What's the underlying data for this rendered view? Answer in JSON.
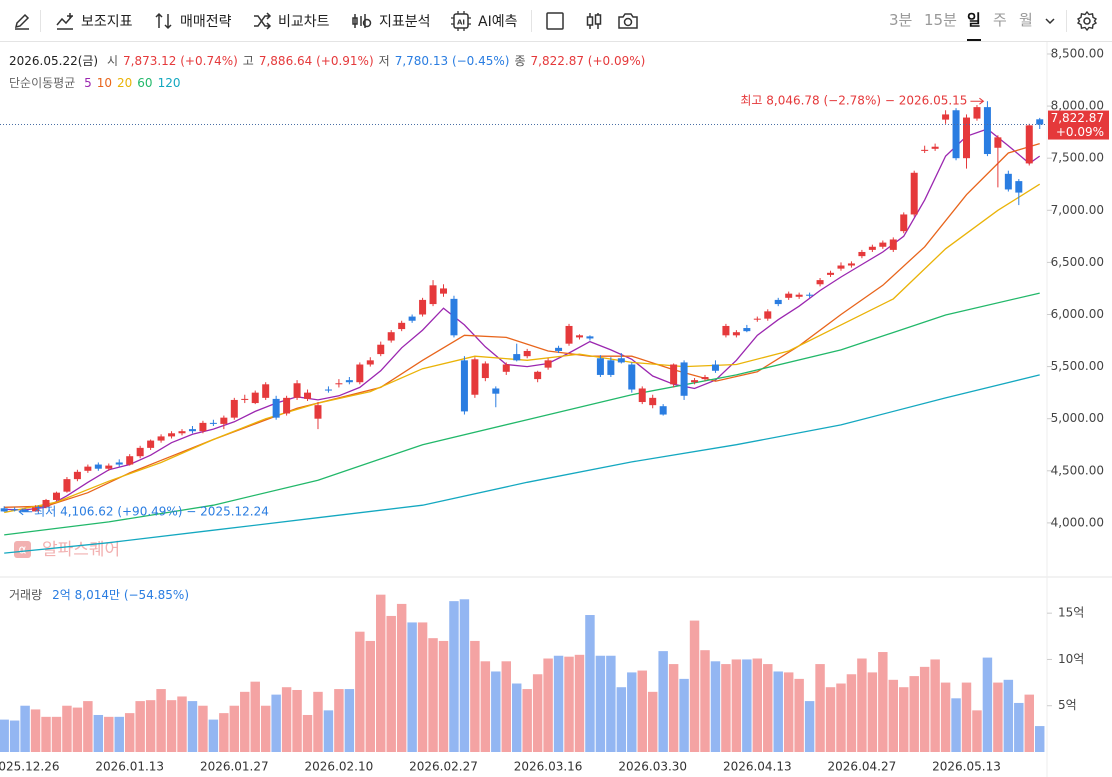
{
  "toolbar": {
    "tools": [
      "보조지표",
      "매매전략",
      "비교차트",
      "지표분석",
      "AI예측"
    ],
    "periods": [
      {
        "label": "3분"
      },
      {
        "label": "15분"
      },
      {
        "label": "일",
        "selected": true
      },
      {
        "label": "주"
      },
      {
        "label": "월"
      }
    ]
  },
  "chart_data": {
    "type": "candlestick",
    "info": {
      "date": "2026.05.22(금)",
      "fields": [
        {
          "label": "시",
          "value": "7,873.12 (+0.74%)",
          "color": "#e5393b"
        },
        {
          "label": "고",
          "value": "7,886.64 (+0.91%)",
          "color": "#e5393b"
        },
        {
          "label": "저",
          "value": "7,780.13 (−0.45%)",
          "color": "#2a7de1"
        },
        {
          "label": "종",
          "value": "7,822.87 (+0.09%)",
          "color": "#e5393b"
        }
      ]
    },
    "ma_title": "단순이동평균",
    "watermark": "알파스퀘어",
    "categories": [
      null,
      null,
      "2025.12.26",
      null,
      null,
      null,
      null,
      null,
      null,
      null,
      null,
      null,
      "2026.01.13",
      null,
      null,
      null,
      null,
      null,
      null,
      null,
      null,
      null,
      "2026.01.27",
      null,
      null,
      null,
      null,
      null,
      null,
      null,
      null,
      null,
      "2026.02.10",
      null,
      null,
      null,
      null,
      null,
      null,
      null,
      null,
      null,
      "2026.02.27",
      null,
      null,
      null,
      null,
      null,
      null,
      null,
      null,
      null,
      "2026.03.16",
      null,
      null,
      null,
      null,
      null,
      null,
      null,
      null,
      null,
      "2026.03.30",
      null,
      null,
      null,
      null,
      null,
      null,
      null,
      null,
      null,
      "2026.04.13",
      null,
      null,
      null,
      null,
      null,
      null,
      null,
      null,
      null,
      "2026.04.27",
      null,
      null,
      null,
      null,
      null,
      null,
      null,
      null,
      null,
      "2026.05.13",
      null,
      null,
      null,
      null,
      null,
      null,
      null
    ],
    "open": [
      4140,
      4130,
      4125,
      4110,
      4150,
      4220,
      4300,
      4420,
      4500,
      4560,
      4520,
      4580,
      4560,
      4640,
      4720,
      4790,
      4830,
      4860,
      4900,
      4880,
      4960,
      4950,
      5010,
      5180,
      5150,
      5200,
      5190,
      5050,
      5200,
      5190,
      5000,
      5280,
      5330,
      5370,
      5350,
      5520,
      5620,
      5750,
      5860,
      5980,
      6000,
      6100,
      6200,
      6150,
      5560,
      5230,
      5390,
      5290,
      5450,
      5620,
      5600,
      5380,
      5490,
      5680,
      5720,
      5780,
      5790,
      5580,
      5560,
      5580,
      5520,
      5160,
      5130,
      5120,
      5330,
      5540,
      5350,
      5380,
      5520,
      5800,
      5800,
      5870,
      5950,
      5960,
      6140,
      6160,
      6170,
      6190,
      6290,
      6380,
      6440,
      6470,
      6560,
      6620,
      6650,
      6620,
      6800,
      6960,
      7570,
      7590,
      7870,
      7960,
      7500,
      7880,
      7990,
      7600,
      7350,
      7280,
      7450,
      7873.12
    ],
    "high": [
      4160,
      4150,
      4140,
      4170,
      4230,
      4300,
      4440,
      4510,
      4560,
      4580,
      4570,
      4610,
      4660,
      4740,
      4800,
      4850,
      4880,
      4900,
      4930,
      4980,
      4990,
      5030,
      5200,
      5230,
      5270,
      5350,
      5220,
      5220,
      5370,
      5280,
      5160,
      5310,
      5380,
      5400,
      5540,
      5590,
      5740,
      5850,
      5940,
      6000,
      6160,
      6330,
      6290,
      6180,
      5600,
      5590,
      5550,
      5310,
      5540,
      5720,
      5670,
      5460,
      5580,
      5700,
      5910,
      5810,
      5800,
      5610,
      5590,
      5630,
      5540,
      5310,
      5230,
      5140,
      5530,
      5560,
      5390,
      5420,
      5560,
      5910,
      5850,
      5900,
      5980,
      6050,
      6160,
      6220,
      6210,
      6210,
      6350,
      6420,
      6500,
      6510,
      6620,
      6670,
      6710,
      6740,
      6980,
      7380,
      7620,
      7640,
      7960,
      7980,
      7920,
      8010,
      8046.78,
      7720,
      7380,
      7300,
      7830,
      7886.64
    ],
    "low": [
      4106.62,
      4110,
      4108,
      4108,
      4140,
      4210,
      4290,
      4400,
      4480,
      4500,
      4500,
      4540,
      4550,
      4620,
      4700,
      4770,
      4810,
      4840,
      4860,
      4860,
      4930,
      4900,
      4990,
      5150,
      5140,
      5180,
      4990,
      5030,
      5180,
      5170,
      4900,
      5250,
      5300,
      5330,
      5330,
      5500,
      5600,
      5730,
      5840,
      5920,
      5980,
      6080,
      6170,
      5780,
      5040,
      5200,
      5360,
      5110,
      5420,
      5550,
      5580,
      5350,
      5470,
      5630,
      5700,
      5760,
      5750,
      5400,
      5400,
      5530,
      5250,
      5140,
      5100,
      5030,
      5300,
      5180,
      5330,
      5360,
      5440,
      5780,
      5780,
      5830,
      5930,
      5940,
      6080,
      6140,
      6150,
      6160,
      6270,
      6360,
      6420,
      6450,
      6540,
      6600,
      6630,
      6600,
      6780,
      6940,
      7550,
      7570,
      7830,
      7480,
      7400,
      7860,
      7520,
      7220,
      7180,
      7050,
      7430,
      7780.13
    ],
    "close": [
      4110,
      4120,
      4110,
      4150,
      4220,
      4290,
      4420,
      4490,
      4540,
      4520,
      4550,
      4560,
      4640,
      4720,
      4790,
      4830,
      4860,
      4880,
      4880,
      4960,
      4950,
      5010,
      5180,
      5190,
      5250,
      5330,
      5010,
      5200,
      5340,
      5250,
      5130,
      5270,
      5340,
      5350,
      5520,
      5560,
      5710,
      5830,
      5920,
      5940,
      6140,
      6280,
      6250,
      5800,
      5070,
      5570,
      5530,
      5240,
      5520,
      5560,
      5650,
      5450,
      5560,
      5650,
      5890,
      5800,
      5770,
      5420,
      5420,
      5540,
      5280,
      5290,
      5200,
      5040,
      5520,
      5220,
      5370,
      5400,
      5460,
      5890,
      5830,
      5840,
      5960,
      6030,
      6100,
      6200,
      6190,
      6180,
      6330,
      6400,
      6470,
      6490,
      6600,
      6650,
      6690,
      6720,
      6960,
      7360,
      7580,
      7610,
      7920,
      7500,
      7890,
      7990,
      7540,
      7700,
      7200,
      7170,
      7815,
      7822.87
    ],
    "up_color": "#e5393b",
    "down_color": "#2a7de1",
    "ylim": [
      3500,
      8615
    ],
    "yticks": [
      {
        "value": 4000,
        "label": "4,000.00"
      },
      {
        "value": 4500,
        "label": "4,500.00"
      },
      {
        "value": 5000,
        "label": "5,000.00"
      },
      {
        "value": 5500,
        "label": "5,500.00"
      },
      {
        "value": 6000,
        "label": "6,000.00"
      },
      {
        "value": 6500,
        "label": "6,500.00"
      },
      {
        "value": 7000,
        "label": "7,000.00"
      },
      {
        "value": 7500,
        "label": "7,500.00"
      },
      {
        "value": 8000,
        "label": "8,000.00"
      },
      {
        "value": 8500,
        "label": "8,500.00"
      }
    ],
    "moving_averages": [
      {
        "name": "5",
        "color": "#9b27b0",
        "x": [
          0,
          2,
          4,
          6,
          8,
          10,
          12,
          14,
          16,
          18,
          20,
          22,
          24,
          26,
          28,
          30,
          32,
          34,
          36,
          38,
          40,
          42,
          44,
          46,
          48,
          50,
          52,
          54,
          56,
          58,
          60,
          62,
          64,
          66,
          68,
          70,
          72,
          74,
          76,
          78,
          80,
          82,
          84,
          86,
          88,
          90,
          92,
          94,
          96,
          98,
          99
        ],
        "values": [
          4130,
          4125,
          4150,
          4260,
          4390,
          4510,
          4560,
          4650,
          4770,
          4850,
          4900,
          4970,
          5070,
          5150,
          5210,
          5180,
          5220,
          5300,
          5460,
          5680,
          5850,
          6060,
          5900,
          5690,
          5520,
          5500,
          5530,
          5630,
          5740,
          5660,
          5570,
          5410,
          5330,
          5290,
          5370,
          5560,
          5800,
          5950,
          6080,
          6230,
          6360,
          6480,
          6600,
          6750,
          7100,
          7520,
          7710,
          7780,
          7620,
          7450,
          7520
        ]
      },
      {
        "name": "10",
        "color": "#e8651c",
        "x": [
          0,
          4,
          8,
          12,
          16,
          20,
          24,
          28,
          32,
          36,
          40,
          44,
          48,
          52,
          56,
          60,
          64,
          68,
          72,
          76,
          80,
          84,
          88,
          92,
          96,
          99
        ],
        "values": [
          4150,
          4160,
          4290,
          4480,
          4640,
          4800,
          4950,
          5100,
          5200,
          5300,
          5560,
          5800,
          5780,
          5650,
          5600,
          5600,
          5470,
          5360,
          5450,
          5700,
          6000,
          6280,
          6650,
          7150,
          7550,
          7640
        ]
      },
      {
        "name": "20",
        "color": "#eab308",
        "x": [
          0,
          5,
          10,
          15,
          20,
          25,
          30,
          35,
          40,
          45,
          50,
          55,
          60,
          65,
          70,
          75,
          80,
          85,
          90,
          95,
          99
        ],
        "values": [
          4100,
          4200,
          4400,
          4580,
          4800,
          5000,
          5150,
          5260,
          5480,
          5600,
          5560,
          5620,
          5540,
          5500,
          5520,
          5650,
          5900,
          6150,
          6630,
          7000,
          7250
        ]
      },
      {
        "name": "60",
        "color": "#22b86a",
        "x": [
          0,
          10,
          20,
          30,
          40,
          50,
          60,
          70,
          80,
          90,
          99
        ],
        "values": [
          3885,
          4010,
          4170,
          4410,
          4750,
          4990,
          5230,
          5420,
          5660,
          5995,
          6205
        ]
      },
      {
        "name": "120",
        "color": "#14a8c0",
        "x": [
          0,
          10,
          20,
          30,
          40,
          50,
          60,
          70,
          80,
          90,
          99
        ],
        "values": [
          3710,
          3810,
          3930,
          4050,
          4170,
          4390,
          4585,
          4750,
          4940,
          5200,
          5420
        ]
      }
    ],
    "annotations": {
      "high": "최고 8,046.78 (−2.78%) − 2026.05.15",
      "low": "최저 4,106.62 (+90.49%) − 2025.12.24"
    },
    "last_price": {
      "label": "7,822.87",
      "change": "+0.09%"
    },
    "volume": {
      "title": "거래량",
      "summary": "2억 8,014만 (−54.85%)",
      "values": [
        3.5,
        3.4,
        5.0,
        4.6,
        3.8,
        3.8,
        5.0,
        4.8,
        5.5,
        4.0,
        3.8,
        3.8,
        4.2,
        5.5,
        5.6,
        6.8,
        5.6,
        6.0,
        5.5,
        5.0,
        3.5,
        4.2,
        5.0,
        6.5,
        7.6,
        5.0,
        6.2,
        7.0,
        6.7,
        4.0,
        6.5,
        4.5,
        6.8,
        6.8,
        13.0,
        12.0,
        17.0,
        14.7,
        16.0,
        14.0,
        14.0,
        12.3,
        12.0,
        16.3,
        16.5,
        12.0,
        9.8,
        8.7,
        9.8,
        7.4,
        6.8,
        8.4,
        10.1,
        10.4,
        10.3,
        10.5,
        14.8,
        10.4,
        10.4,
        7.0,
        8.6,
        8.8,
        6.5,
        10.9,
        9.5,
        7.9,
        14.2,
        11.0,
        9.8,
        9.5,
        10.0,
        10.0,
        10.1,
        9.5,
        8.7,
        8.6,
        7.9,
        5.5,
        9.5,
        7.0,
        7.4,
        8.4,
        10.1,
        8.6,
        10.8,
        7.8,
        7.0,
        8.2,
        9.2,
        10.0,
        7.5,
        5.8,
        7.5,
        4.5,
        10.2,
        7.5,
        7.8,
        5.3,
        6.2,
        2.8014
      ],
      "up_color": "#f4a3a3",
      "down_color": "#93b6f2",
      "ylim": [
        0,
        18.8
      ],
      "yticks": [
        {
          "value": 5,
          "label": "5억"
        },
        {
          "value": 10,
          "label": "10억"
        },
        {
          "value": 15,
          "label": "15억"
        }
      ]
    }
  }
}
